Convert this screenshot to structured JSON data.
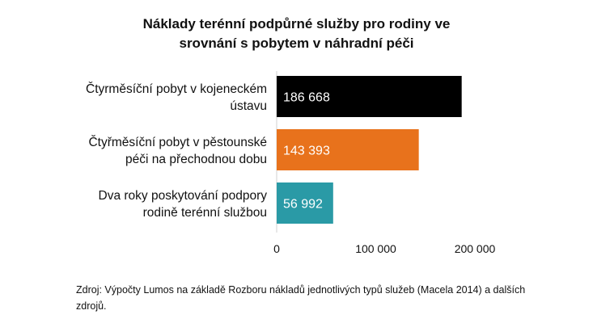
{
  "title_lines": [
    "Náklady terénní podpůrné služby pro rodiny ve",
    "srovnání s pobytem v náhradní péči"
  ],
  "source_note": "Zdroj: Výpočty Lumos na základě Rozboru nákladů jednotlivých typů služeb (Macela 2014) a dalších zdrojů.",
  "chart_data": {
    "type": "bar",
    "orientation": "horizontal",
    "title": "Náklady terénní podpůrné služby pro rodiny ve srovnání s pobytem v náhradní péči",
    "categories": [
      [
        "Čtyrměsíční pobyt v kojeneckém",
        "ústavu"
      ],
      [
        "Čtyřměsíční pobyt v pěstounské",
        "péči na přechodnou dobu"
      ],
      [
        "Dva roky poskytování podpory",
        "rodině terénní službou"
      ]
    ],
    "values": [
      186668,
      143393,
      56992
    ],
    "value_labels": [
      "186 668",
      "143 393",
      "56 992"
    ],
    "bar_colors": [
      "#000000",
      "#e8721c",
      "#2a9aa6"
    ],
    "xlim": [
      0,
      200000
    ],
    "xticks": [
      0,
      100000,
      200000
    ],
    "xtick_labels": [
      "0",
      "100 000",
      "200 000"
    ],
    "grid": false,
    "legend": "none"
  }
}
